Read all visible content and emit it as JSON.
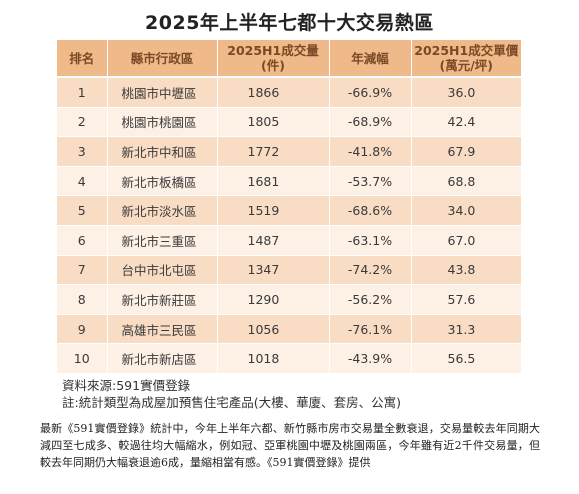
{
  "title": "2025年上半年七都十大交易熱區",
  "table": {
    "headers": [
      "排名",
      "縣市行政區",
      "2025H1成交量\n(件)",
      "年減幅",
      "2025H1成交單價\n(萬元/坪)"
    ],
    "header_lines": [
      [
        "排名"
      ],
      [
        "縣市行政區"
      ],
      [
        "2025H1成交量",
        "(件)"
      ],
      [
        "年減幅"
      ],
      [
        "2025H1成交單價",
        "(萬元/坪)"
      ]
    ],
    "rows": [
      [
        "1",
        "桃園市中壢區",
        "1866",
        "-66.9%",
        "36.0"
      ],
      [
        "2",
        "桃園市桃園區",
        "1805",
        "-68.9%",
        "42.4"
      ],
      [
        "3",
        "新北市中和區",
        "1772",
        "-41.8%",
        "67.9"
      ],
      [
        "4",
        "新北市板橋區",
        "1681",
        "-53.7%",
        "68.8"
      ],
      [
        "5",
        "新北市淡水區",
        "1519",
        "-68.6%",
        "34.0"
      ],
      [
        "6",
        "新北市三重區",
        "1487",
        "-63.1%",
        "67.0"
      ],
      [
        "7",
        "台中市北屯區",
        "1347",
        "-74.2%",
        "43.8"
      ],
      [
        "8",
        "新北市新莊區",
        "1290",
        "-56.2%",
        "57.6"
      ],
      [
        "9",
        "高雄市三民區",
        "1056",
        "-76.1%",
        "31.3"
      ],
      [
        "10",
        "新北市新店區",
        "1018",
        "-43.9%",
        "56.5"
      ]
    ]
  },
  "source_line": "資料來源:591實價登錄",
  "note_line": "註:統計類型為成屋加預售住宅產品(大樓、華廈、套房、公寓)",
  "paragraph": "最新《591實價登錄》統計中，今年上半年六都、新竹縣市房市交易量全數衰退，交易量較去年同期大減四至七成多、較過往均大幅縮水，例如冠、亞軍桃園中壢及桃園兩區，今年雖有近2千件交易量，但較去年同期仍大幅衰退逾6成，量縮相當有感。《591實價登錄》提供",
  "colors": {
    "header_bg": "#f0b98a",
    "header_text": "#7a4a25",
    "row_odd_bg": "#f9dcc4",
    "row_even_bg": "#fdf0e5"
  }
}
